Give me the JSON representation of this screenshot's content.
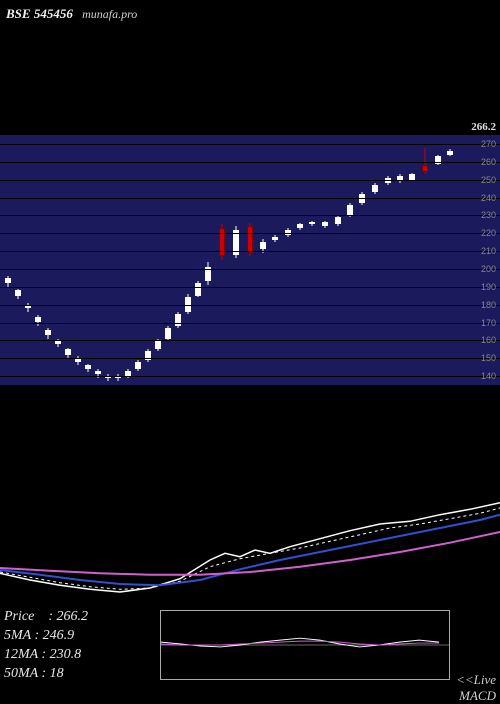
{
  "header": {
    "ticker": "BSE 545456",
    "site": "munafa.pro"
  },
  "candle_chart": {
    "type": "candlestick",
    "panel_bg": "#1a1a5c",
    "grid_color": "#000000",
    "ylim": [
      135,
      275
    ],
    "ytick_step": 10,
    "price_label": "266.2",
    "ytick_labels": [
      "270",
      "260",
      "250",
      "240",
      "230",
      "220",
      "210",
      "200",
      "190",
      "180",
      "170",
      "160",
      "150",
      "140"
    ],
    "candles": [
      {
        "x": 8,
        "open": 195,
        "close": 192,
        "low": 190,
        "high": 196,
        "color": "#ffffff"
      },
      {
        "x": 18,
        "open": 188,
        "close": 185,
        "low": 183,
        "high": 189,
        "color": "#ffffff"
      },
      {
        "x": 28,
        "open": 180,
        "close": 178,
        "low": 176,
        "high": 181,
        "color": "#ffffff"
      },
      {
        "x": 38,
        "open": 173,
        "close": 170,
        "low": 168,
        "high": 174,
        "color": "#ffffff"
      },
      {
        "x": 48,
        "open": 166,
        "close": 163,
        "low": 161,
        "high": 167,
        "color": "#ffffff"
      },
      {
        "x": 58,
        "open": 160,
        "close": 158,
        "low": 156,
        "high": 161,
        "color": "#ffffff"
      },
      {
        "x": 68,
        "open": 155,
        "close": 152,
        "low": 150,
        "high": 156,
        "color": "#ffffff"
      },
      {
        "x": 78,
        "open": 150,
        "close": 148,
        "low": 146,
        "high": 151,
        "color": "#ffffff"
      },
      {
        "x": 88,
        "open": 146,
        "close": 144,
        "low": 142,
        "high": 147,
        "color": "#ffffff"
      },
      {
        "x": 98,
        "open": 143,
        "close": 141,
        "low": 139,
        "high": 144,
        "color": "#ffffff"
      },
      {
        "x": 108,
        "open": 140,
        "close": 139,
        "low": 137,
        "high": 141,
        "color": "#ffffff"
      },
      {
        "x": 118,
        "open": 139,
        "close": 140,
        "low": 137,
        "high": 141,
        "color": "#ffffff"
      },
      {
        "x": 128,
        "open": 140,
        "close": 143,
        "low": 139,
        "high": 144,
        "color": "#ffffff"
      },
      {
        "x": 138,
        "open": 144,
        "close": 148,
        "low": 143,
        "high": 149,
        "color": "#ffffff"
      },
      {
        "x": 148,
        "open": 149,
        "close": 154,
        "low": 148,
        "high": 155,
        "color": "#ffffff"
      },
      {
        "x": 158,
        "open": 155,
        "close": 160,
        "low": 154,
        "high": 161,
        "color": "#ffffff"
      },
      {
        "x": 168,
        "open": 161,
        "close": 167,
        "low": 160,
        "high": 168,
        "color": "#ffffff"
      },
      {
        "x": 178,
        "open": 168,
        "close": 175,
        "low": 167,
        "high": 176,
        "color": "#ffffff"
      },
      {
        "x": 188,
        "open": 176,
        "close": 184,
        "low": 175,
        "high": 186,
        "color": "#ffffff"
      },
      {
        "x": 198,
        "open": 185,
        "close": 192,
        "low": 184,
        "high": 193,
        "color": "#ffffff"
      },
      {
        "x": 208,
        "open": 193,
        "close": 201,
        "low": 191,
        "high": 204,
        "color": "#ffffff"
      },
      {
        "x": 222,
        "open": 223,
        "close": 207,
        "low": 205,
        "high": 225,
        "color": "#cc0000"
      },
      {
        "x": 236,
        "open": 208,
        "close": 222,
        "low": 206,
        "high": 224,
        "color": "#ffffff"
      },
      {
        "x": 250,
        "open": 224,
        "close": 209,
        "low": 207,
        "high": 226,
        "color": "#cc0000"
      },
      {
        "x": 263,
        "open": 211,
        "close": 215,
        "low": 209,
        "high": 217,
        "color": "#ffffff"
      },
      {
        "x": 275,
        "open": 216,
        "close": 218,
        "low": 215,
        "high": 219,
        "color": "#ffffff"
      },
      {
        "x": 288,
        "open": 219,
        "close": 222,
        "low": 218,
        "high": 223,
        "color": "#ffffff"
      },
      {
        "x": 300,
        "open": 223,
        "close": 225,
        "low": 222,
        "high": 226,
        "color": "#ffffff"
      },
      {
        "x": 312,
        "open": 225,
        "close": 226,
        "low": 224,
        "high": 227,
        "color": "#ffffff"
      },
      {
        "x": 325,
        "open": 226,
        "close": 224,
        "low": 223,
        "high": 227,
        "color": "#ffffff"
      },
      {
        "x": 338,
        "open": 225,
        "close": 229,
        "low": 224,
        "high": 230,
        "color": "#ffffff"
      },
      {
        "x": 350,
        "open": 230,
        "close": 236,
        "low": 229,
        "high": 237,
        "color": "#ffffff"
      },
      {
        "x": 362,
        "open": 237,
        "close": 242,
        "low": 236,
        "high": 243,
        "color": "#ffffff"
      },
      {
        "x": 375,
        "open": 243,
        "close": 247,
        "low": 242,
        "high": 248,
        "color": "#ffffff"
      },
      {
        "x": 388,
        "open": 248,
        "close": 251,
        "low": 247,
        "high": 252,
        "color": "#ffffff"
      },
      {
        "x": 400,
        "open": 252,
        "close": 249,
        "low": 248,
        "high": 253,
        "color": "#ffffff"
      },
      {
        "x": 412,
        "open": 250,
        "close": 253,
        "low": 249,
        "high": 254,
        "color": "#ffffff"
      },
      {
        "x": 425,
        "open": 254,
        "close": 258,
        "low": 253,
        "high": 268,
        "color": "#cc0000"
      },
      {
        "x": 438,
        "open": 259,
        "close": 263,
        "low": 258,
        "high": 264,
        "color": "#ffffff"
      },
      {
        "x": 450,
        "open": 264,
        "close": 266,
        "low": 263,
        "high": 267,
        "color": "#ffffff"
      }
    ]
  },
  "ma_chart": {
    "type": "line",
    "xlim": [
      0,
      500
    ],
    "ylim": [
      100,
      280
    ],
    "background_color": "#000000",
    "series": [
      {
        "name": "price",
        "color": "#ffffff",
        "width": 1.5,
        "dash": "0",
        "points": [
          [
            0,
            170
          ],
          [
            30,
            160
          ],
          [
            60,
            152
          ],
          [
            90,
            146
          ],
          [
            120,
            142
          ],
          [
            150,
            148
          ],
          [
            180,
            162
          ],
          [
            210,
            190
          ],
          [
            225,
            200
          ],
          [
            240,
            195
          ],
          [
            255,
            205
          ],
          [
            270,
            200
          ],
          [
            290,
            210
          ],
          [
            320,
            222
          ],
          [
            350,
            234
          ],
          [
            380,
            244
          ],
          [
            410,
            248
          ],
          [
            440,
            258
          ],
          [
            470,
            266
          ],
          [
            500,
            276
          ]
        ]
      },
      {
        "name": "5ma",
        "color": "#ffffff",
        "width": 1,
        "dash": "3,3",
        "points": [
          [
            0,
            172
          ],
          [
            30,
            164
          ],
          [
            60,
            156
          ],
          [
            90,
            150
          ],
          [
            120,
            146
          ],
          [
            150,
            148
          ],
          [
            180,
            158
          ],
          [
            210,
            180
          ],
          [
            240,
            192
          ],
          [
            270,
            200
          ],
          [
            300,
            208
          ],
          [
            330,
            218
          ],
          [
            360,
            228
          ],
          [
            390,
            238
          ],
          [
            420,
            244
          ],
          [
            450,
            252
          ],
          [
            480,
            260
          ],
          [
            500,
            268
          ]
        ]
      },
      {
        "name": "12ma",
        "color": "#3050d0",
        "width": 2,
        "dash": "0",
        "points": [
          [
            0,
            175
          ],
          [
            40,
            168
          ],
          [
            80,
            160
          ],
          [
            120,
            154
          ],
          [
            160,
            152
          ],
          [
            200,
            160
          ],
          [
            240,
            176
          ],
          [
            280,
            190
          ],
          [
            320,
            202
          ],
          [
            360,
            214
          ],
          [
            400,
            226
          ],
          [
            440,
            238
          ],
          [
            480,
            250
          ],
          [
            500,
            258
          ]
        ]
      },
      {
        "name": "50ma",
        "color": "#d060d0",
        "width": 2,
        "dash": "0",
        "points": [
          [
            0,
            178
          ],
          [
            50,
            174
          ],
          [
            100,
            170
          ],
          [
            150,
            168
          ],
          [
            200,
            168
          ],
          [
            250,
            172
          ],
          [
            300,
            180
          ],
          [
            350,
            190
          ],
          [
            400,
            202
          ],
          [
            450,
            216
          ],
          [
            500,
            232
          ]
        ]
      }
    ]
  },
  "info": {
    "rows": [
      "Price    : 266.2",
      "5MA : 246.9",
      "12MA : 230.8",
      "50MA : 18"
    ]
  },
  "macd": {
    "label1": "<<Live",
    "label2": "MACD",
    "border_color": "#aaaaaa",
    "zero_y": 35,
    "series": [
      {
        "name": "macd",
        "color": "#ffffff",
        "width": 1,
        "points": [
          [
            0,
            32
          ],
          [
            20,
            34
          ],
          [
            40,
            36
          ],
          [
            60,
            37
          ],
          [
            80,
            35
          ],
          [
            100,
            32
          ],
          [
            120,
            30
          ],
          [
            140,
            28
          ],
          [
            160,
            30
          ],
          [
            180,
            34
          ],
          [
            200,
            37
          ],
          [
            220,
            35
          ],
          [
            240,
            32
          ],
          [
            260,
            30
          ],
          [
            280,
            32
          ]
        ]
      },
      {
        "name": "signal",
        "color": "#d060d0",
        "width": 1,
        "points": [
          [
            0,
            34
          ],
          [
            20,
            35
          ],
          [
            40,
            35
          ],
          [
            60,
            35
          ],
          [
            80,
            34
          ],
          [
            100,
            33
          ],
          [
            120,
            32
          ],
          [
            140,
            31
          ],
          [
            160,
            31
          ],
          [
            180,
            32
          ],
          [
            200,
            34
          ],
          [
            220,
            35
          ],
          [
            240,
            34
          ],
          [
            260,
            33
          ],
          [
            280,
            33
          ]
        ]
      }
    ]
  }
}
